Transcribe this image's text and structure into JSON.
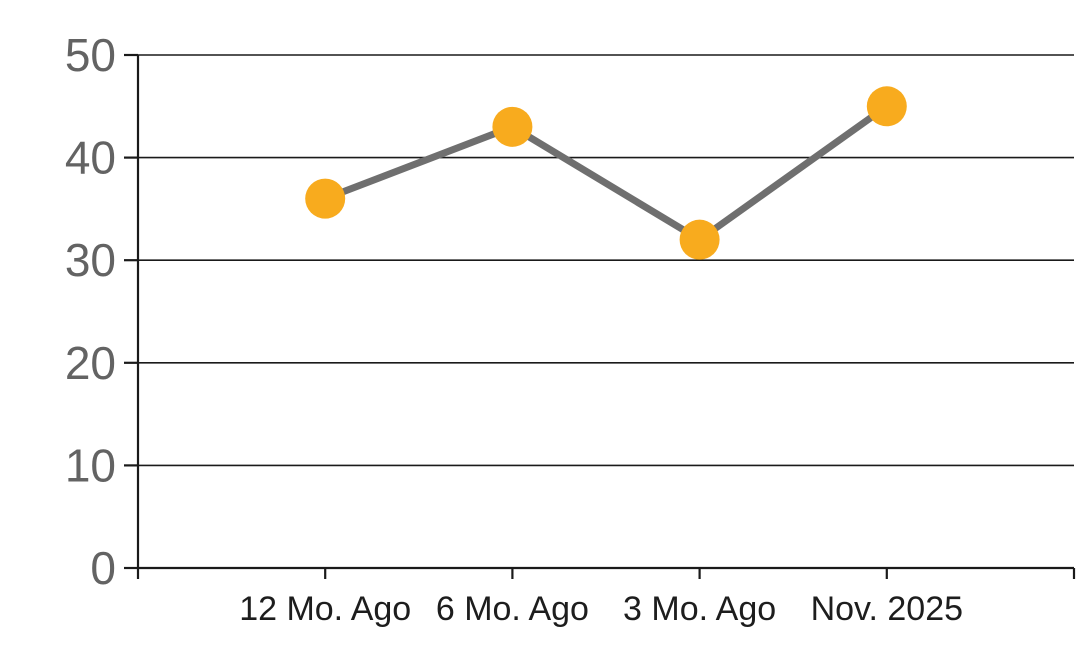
{
  "chart_data": {
    "type": "line",
    "title": "",
    "xlabel": "",
    "ylabel": "",
    "categories": [
      "12 Mo. Ago",
      "6 Mo. Ago",
      "3 Mo. Ago",
      "Nov. 2025"
    ],
    "series": [
      {
        "name": "values",
        "values": [
          36,
          43,
          32,
          45
        ]
      }
    ],
    "ylim": [
      0,
      50
    ],
    "ytick_step": 10,
    "ytick_labels": [
      "0",
      "10",
      "20",
      "30",
      "40",
      "50"
    ],
    "grid": true,
    "legend_position": "none",
    "colors": {
      "marker": "#F8AB1E",
      "line": "#6F6F6F",
      "gridline": "#1A1A1A",
      "axis": "#1A1A1A",
      "y_tick_label": "#636363",
      "x_tick_label": "#1D1D1D",
      "background": "#FFFFFF"
    }
  }
}
